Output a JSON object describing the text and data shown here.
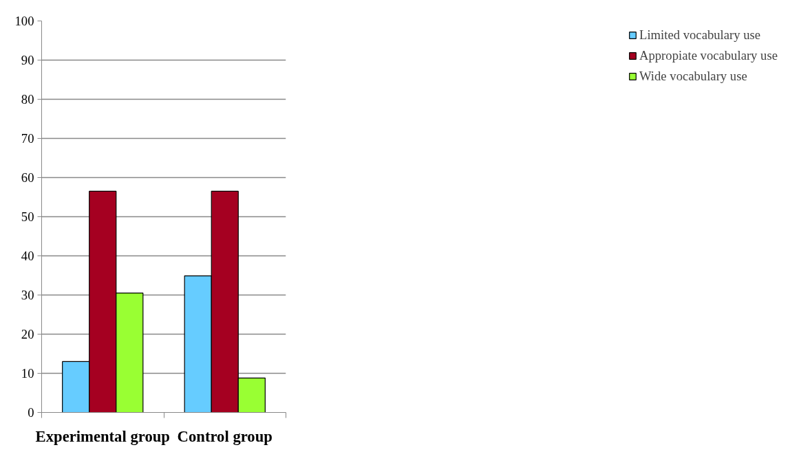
{
  "chart_data": {
    "type": "bar",
    "categories": [
      "Experimental group",
      "Control group"
    ],
    "series": [
      {
        "name": "Limited vocabulary use",
        "color": "#66ccff",
        "values": [
          13.0,
          34.9
        ]
      },
      {
        "name": "Appropiate vocabulary use",
        "color": "#a50021",
        "values": [
          56.5,
          56.5
        ]
      },
      {
        "name": "Wide vocabulary use",
        "color": "#99ff33",
        "values": [
          30.5,
          8.8
        ]
      }
    ],
    "ylim": [
      0,
      100
    ],
    "yticks": [
      0,
      10,
      20,
      30,
      40,
      50,
      60,
      70,
      80,
      90,
      100
    ],
    "grid": "y",
    "legend": "right"
  }
}
